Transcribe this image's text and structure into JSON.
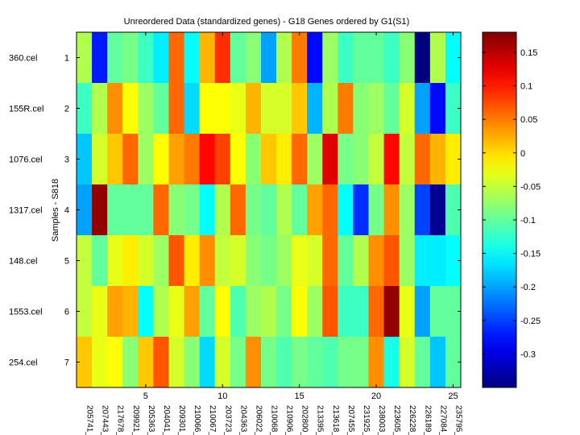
{
  "chart_data": {
    "type": "heatmap",
    "title": "Unreordered Data (standardized genes) - G18 Genes ordered by G1(S1)",
    "ylabel": "Samples - S818",
    "xlabel": "",
    "x_tick_values": [
      "5",
      "10",
      "15",
      "20",
      "25"
    ],
    "row_numbers": [
      "1",
      "2",
      "3",
      "4",
      "5",
      "6",
      "7"
    ],
    "row_labels": [
      "360.cel",
      "155R.cel",
      "1076.cel",
      "1317.cel",
      "148.cel",
      "1553.cel",
      "254.cel"
    ],
    "col_labels": [
      "205741_",
      "207443_",
      "217678_",
      "209921_",
      "205363_",
      "204041_",
      "209301_",
      "210066_",
      "210067_",
      "203723_",
      "204363_",
      "206022_",
      "210068_",
      "210906_",
      "202800_",
      "213395_",
      "213618_",
      "207455_",
      "231925_",
      "238003_",
      "223605_",
      "226228_",
      "226189_",
      "227084_",
      "235795_"
    ],
    "colorbar": {
      "min": -0.35,
      "max": 0.18,
      "ticks": [
        0.15,
        0.1,
        0.05,
        0,
        -0.05,
        -0.1,
        -0.15,
        -0.2,
        -0.25,
        -0.3
      ],
      "tick_labels": [
        "0.15",
        "0.1",
        "0.05",
        "0",
        "-0.05",
        "-0.1",
        "-0.15",
        "-0.2",
        "-0.25",
        "-0.3"
      ],
      "colormap": "jet"
    },
    "values": [
      [
        -0.06,
        -0.27,
        -0.1,
        -0.09,
        -0.12,
        -0.16,
        0.06,
        -0.15,
        0.02,
        0.09,
        -0.1,
        -0.08,
        -0.2,
        -0.06,
        0.05,
        -0.28,
        -0.07,
        -0.12,
        -0.1,
        -0.1,
        -0.12,
        -0.08,
        -0.35,
        -0.06,
        -0.15
      ],
      [
        -0.12,
        -0.06,
        0.04,
        -0.02,
        -0.07,
        -0.1,
        0.06,
        -0.17,
        -0.02,
        -0.02,
        -0.03,
        0.02,
        -0.04,
        -0.04,
        0.01,
        -0.19,
        -0.06,
        0.05,
        -0.08,
        -0.07,
        -0.1,
        -0.04,
        -0.2,
        -0.28,
        -0.12
      ],
      [
        -0.18,
        -0.04,
        0.01,
        0.06,
        -0.07,
        -0.02,
        0.03,
        0.05,
        0.11,
        0.08,
        -0.02,
        -0.08,
        0.01,
        -0.01,
        0.06,
        -0.07,
        0.13,
        -0.09,
        -0.08,
        -0.05,
        0.11,
        -0.05,
        0.06,
        0.02,
        -0.01
      ],
      [
        -0.2,
        0.17,
        -0.1,
        -0.1,
        -0.1,
        0.06,
        -0.08,
        -0.09,
        -0.15,
        -0.06,
        0.06,
        -0.09,
        -0.1,
        -0.06,
        -0.1,
        0.03,
        0.06,
        -0.15,
        -0.26,
        -0.09,
        0.04,
        -0.07,
        -0.25,
        -0.34,
        -0.11
      ],
      [
        -0.05,
        -0.1,
        -0.03,
        -0.01,
        -0.04,
        -0.07,
        0.07,
        -0.01,
        0.04,
        -0.05,
        -0.04,
        -0.08,
        -0.09,
        -0.07,
        -0.03,
        -0.04,
        0.06,
        -0.1,
        -0.06,
        0.04,
        0.07,
        -0.07,
        -0.16,
        -0.16,
        -0.15
      ],
      [
        -0.05,
        -0.03,
        0.03,
        0.02,
        -0.15,
        -0.06,
        -0.03,
        0.03,
        -0.1,
        -0.02,
        -0.11,
        -0.07,
        -0.06,
        -0.09,
        -0.02,
        -0.07,
        0.07,
        -0.12,
        -0.12,
        0.06,
        0.17,
        -0.03,
        -0.2,
        -0.1,
        -0.1
      ],
      [
        0.01,
        -0.03,
        -0.02,
        -0.08,
        0.01,
        0.07,
        -0.04,
        -0.08,
        -0.17,
        -0.04,
        -0.09,
        0.04,
        -0.09,
        -0.11,
        -0.09,
        -0.1,
        -0.11,
        -0.09,
        -0.09,
        0.04,
        -0.14,
        -0.04,
        -0.1,
        -0.18,
        -0.1
      ]
    ]
  }
}
